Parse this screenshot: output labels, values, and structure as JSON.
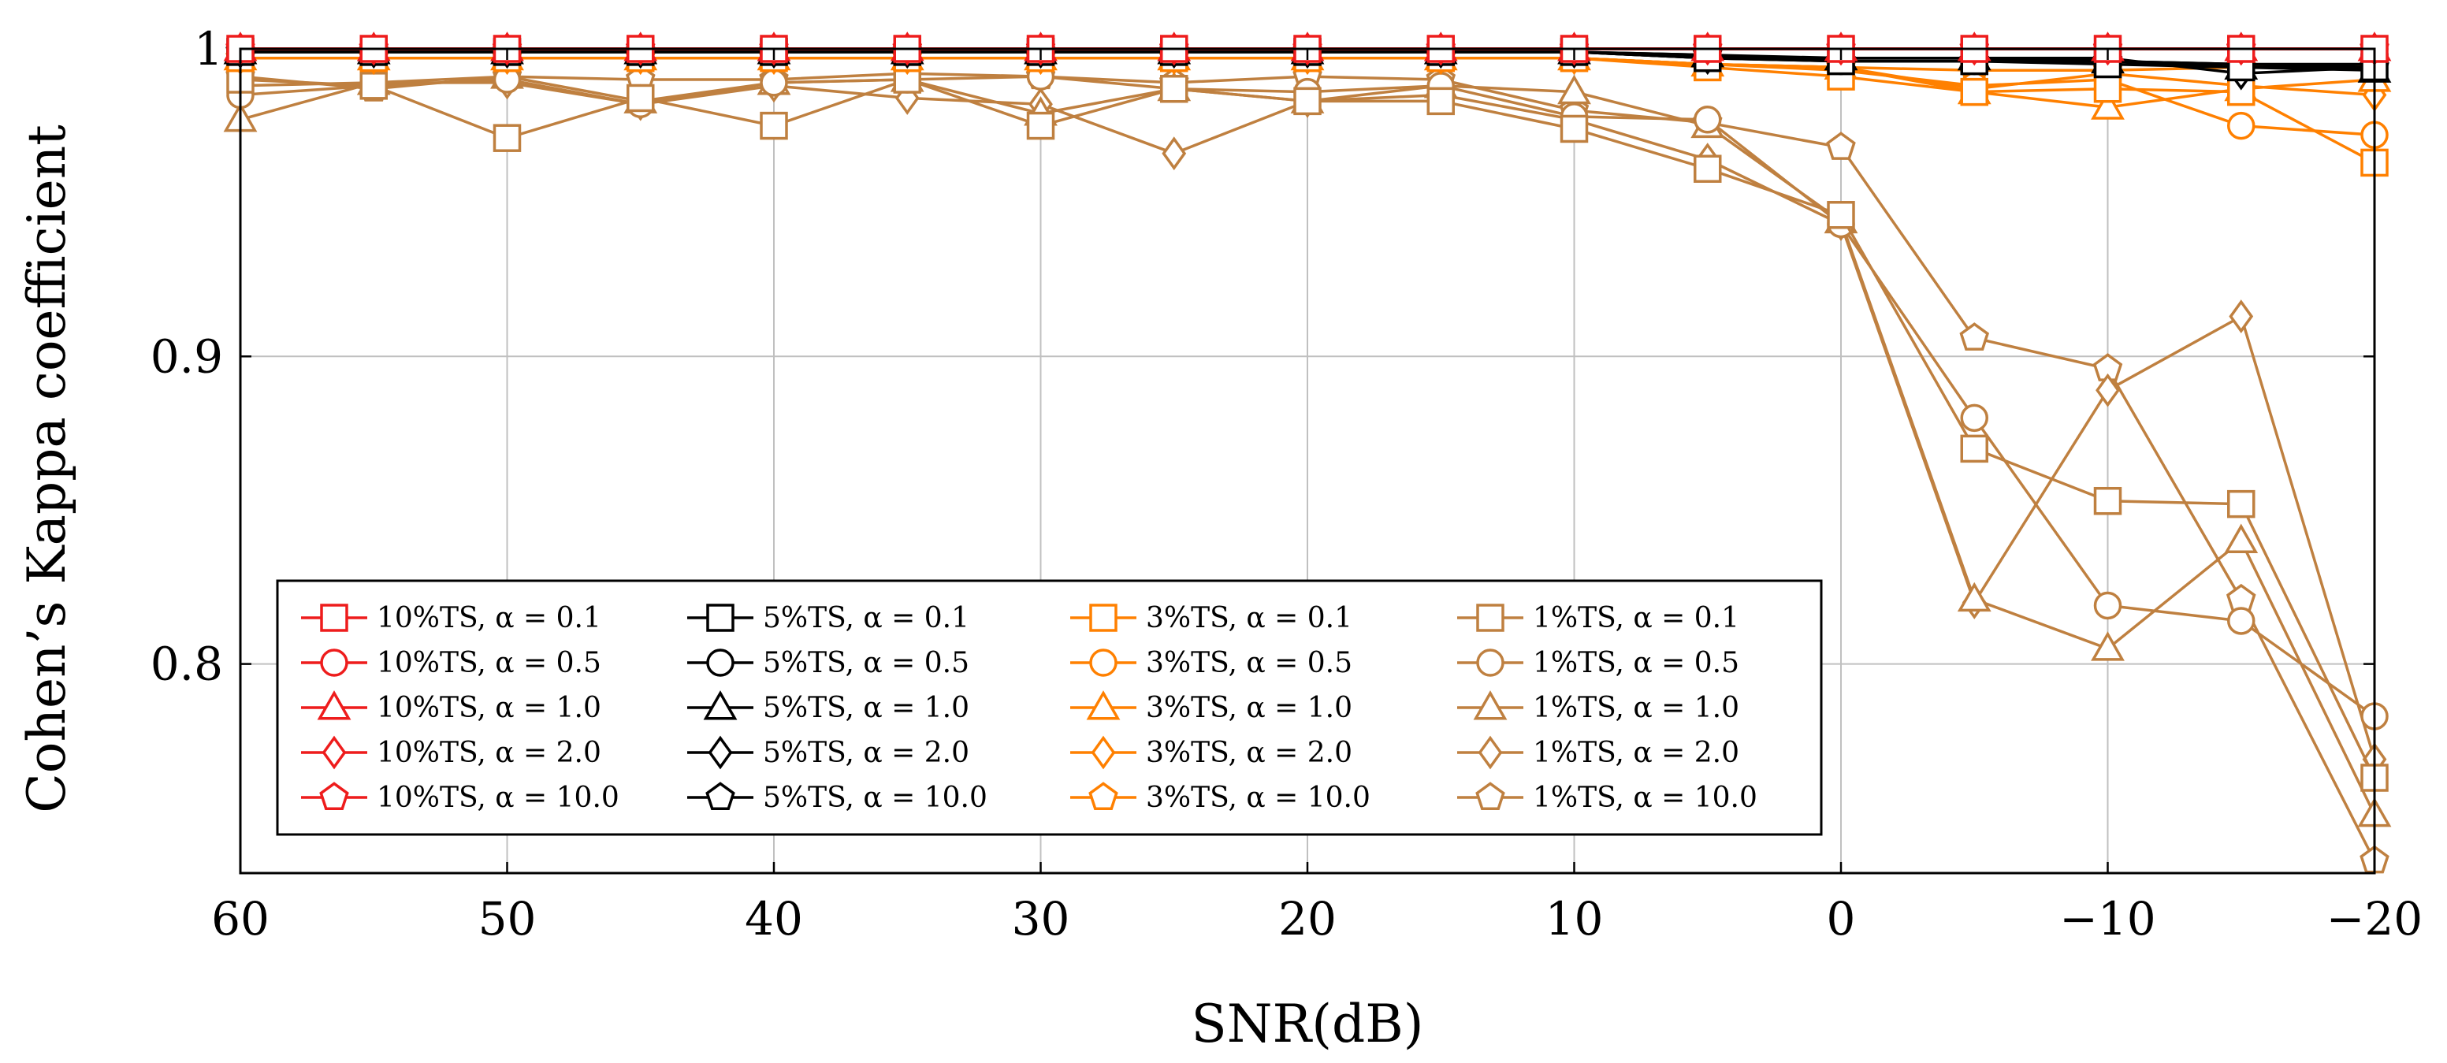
{
  "chart_data": {
    "type": "line",
    "title": "",
    "xlabel": "SNR(dB)",
    "ylabel": "Cohen’s Kappa coefficient",
    "xlim": [
      60,
      -20
    ],
    "ylim": [
      0.732,
      1.0
    ],
    "grid": true,
    "legend_position": "lower-left",
    "legend_columns": 4,
    "x": [
      60,
      55,
      50,
      45,
      40,
      35,
      30,
      25,
      20,
      15,
      10,
      5,
      0,
      -5,
      -10,
      -15,
      -20
    ],
    "x_ticks": [
      60,
      50,
      40,
      30,
      20,
      10,
      0,
      -10,
      -20
    ],
    "x_tick_labels": [
      "60",
      "50",
      "40",
      "30",
      "20",
      "10",
      "0",
      "−10",
      "−20"
    ],
    "y_ticks": [
      0.8,
      0.9,
      1.0
    ],
    "y_tick_labels": [
      "0.8",
      "0.9",
      "1"
    ],
    "colors": {
      "red": "#ee1c1c",
      "black": "#000000",
      "orange": "#ff8000",
      "brown": "#bf8040"
    },
    "series": [
      {
        "name": "10%TS, α = 0.1",
        "ts": "10%TS",
        "alpha": "0.1",
        "color": "#ee1c1c",
        "marker": "square",
        "values": [
          1.0,
          1.0,
          1.0,
          1.0,
          1.0,
          1.0,
          1.0,
          1.0,
          1.0,
          1.0,
          1.0,
          1.0,
          1.0,
          1.0,
          1.0,
          1.0,
          1.0
        ]
      },
      {
        "name": "10%TS, α = 0.5",
        "ts": "10%TS",
        "alpha": "0.5",
        "color": "#ee1c1c",
        "marker": "circle",
        "values": [
          1.0,
          1.0,
          1.0,
          1.0,
          1.0,
          1.0,
          1.0,
          1.0,
          1.0,
          1.0,
          1.0,
          1.0,
          1.0,
          1.0,
          1.0,
          1.0,
          1.0
        ]
      },
      {
        "name": "10%TS, α = 1.0",
        "ts": "10%TS",
        "alpha": "1.0",
        "color": "#ee1c1c",
        "marker": "triangle",
        "values": [
          1.0,
          1.0,
          1.0,
          1.0,
          1.0,
          1.0,
          1.0,
          1.0,
          1.0,
          1.0,
          1.0,
          1.0,
          1.0,
          1.0,
          1.0,
          1.0,
          1.0
        ]
      },
      {
        "name": "10%TS, α = 2.0",
        "ts": "10%TS",
        "alpha": "2.0",
        "color": "#ee1c1c",
        "marker": "diamond",
        "values": [
          1.0,
          1.0,
          1.0,
          1.0,
          1.0,
          1.0,
          1.0,
          1.0,
          1.0,
          1.0,
          1.0,
          1.0,
          1.0,
          1.0,
          1.0,
          1.0,
          1.0
        ]
      },
      {
        "name": "10%TS, α = 10.0",
        "ts": "10%TS",
        "alpha": "10.0",
        "color": "#ee1c1c",
        "marker": "pentagon",
        "values": [
          1.0,
          1.0,
          1.0,
          1.0,
          1.0,
          1.0,
          1.0,
          1.0,
          1.0,
          1.0,
          1.0,
          1.0,
          1.0,
          1.0,
          1.0,
          1.0,
          1.0
        ]
      },
      {
        "name": "5%TS, α = 0.1",
        "ts": "5%TS",
        "alpha": "0.1",
        "color": "#000000",
        "marker": "square",
        "values": [
          0.999,
          0.999,
          0.999,
          0.999,
          0.999,
          0.999,
          0.999,
          0.999,
          0.999,
          0.999,
          0.999,
          0.997,
          0.996,
          0.996,
          0.995,
          0.994,
          0.994
        ]
      },
      {
        "name": "5%TS, α = 0.5",
        "ts": "5%TS",
        "alpha": "0.5",
        "color": "#000000",
        "marker": "circle",
        "values": [
          0.999,
          0.999,
          0.999,
          0.999,
          0.999,
          0.999,
          0.999,
          0.999,
          0.999,
          0.999,
          0.999,
          0.997,
          0.996,
          0.996,
          0.996,
          0.995,
          0.995
        ]
      },
      {
        "name": "5%TS, α = 1.0",
        "ts": "5%TS",
        "alpha": "1.0",
        "color": "#000000",
        "marker": "triangle",
        "values": [
          0.999,
          0.999,
          0.999,
          0.999,
          0.999,
          0.999,
          0.999,
          0.999,
          0.999,
          0.999,
          0.999,
          0.998,
          0.997,
          0.997,
          0.996,
          0.994,
          0.993
        ]
      },
      {
        "name": "5%TS, α = 2.0",
        "ts": "5%TS",
        "alpha": "2.0",
        "color": "#000000",
        "marker": "diamond",
        "values": [
          0.999,
          0.999,
          0.999,
          0.999,
          0.999,
          0.999,
          0.999,
          0.999,
          0.999,
          0.999,
          0.999,
          0.997,
          0.997,
          0.997,
          0.997,
          0.992,
          0.994
        ]
      },
      {
        "name": "5%TS, α = 10.0",
        "ts": "5%TS",
        "alpha": "10.0",
        "color": "#000000",
        "marker": "pentagon",
        "values": [
          0.999,
          0.999,
          0.999,
          0.999,
          0.999,
          0.999,
          0.999,
          0.999,
          0.999,
          0.999,
          0.999,
          0.998,
          0.996,
          0.996,
          0.996,
          0.995,
          0.994
        ]
      },
      {
        "name": "3%TS, α = 0.1",
        "ts": "3%TS",
        "alpha": "0.1",
        "color": "#ff8000",
        "marker": "square",
        "values": [
          0.997,
          0.997,
          0.997,
          0.997,
          0.997,
          0.997,
          0.997,
          0.997,
          0.997,
          0.997,
          0.997,
          0.994,
          0.991,
          0.986,
          0.987,
          0.986,
          0.963
        ]
      },
      {
        "name": "3%TS, α = 0.5",
        "ts": "3%TS",
        "alpha": "0.5",
        "color": "#ff8000",
        "marker": "circle",
        "values": [
          0.997,
          0.997,
          0.997,
          0.997,
          0.997,
          0.997,
          0.997,
          0.997,
          0.997,
          0.997,
          0.997,
          0.995,
          0.993,
          0.988,
          0.99,
          0.975,
          0.972
        ]
      },
      {
        "name": "3%TS, α = 1.0",
        "ts": "3%TS",
        "alpha": "1.0",
        "color": "#ff8000",
        "marker": "triangle",
        "values": [
          0.997,
          0.997,
          0.997,
          0.997,
          0.997,
          0.997,
          0.997,
          0.997,
          0.997,
          0.997,
          0.997,
          0.995,
          0.994,
          0.986,
          0.981,
          0.987,
          0.99
        ]
      },
      {
        "name": "3%TS, α = 2.0",
        "ts": "3%TS",
        "alpha": "2.0",
        "color": "#ff8000",
        "marker": "diamond",
        "values": [
          0.997,
          0.997,
          0.997,
          0.997,
          0.997,
          0.997,
          0.997,
          0.997,
          0.997,
          0.997,
          0.997,
          0.995,
          0.994,
          0.987,
          0.992,
          0.988,
          0.985
        ]
      },
      {
        "name": "3%TS, α = 10.0",
        "ts": "3%TS",
        "alpha": "10.0",
        "color": "#ff8000",
        "marker": "pentagon",
        "values": [
          0.997,
          0.997,
          0.997,
          0.997,
          0.997,
          0.997,
          0.997,
          0.997,
          0.997,
          0.997,
          0.997,
          0.995,
          0.994,
          0.993,
          0.993,
          0.994,
          0.995
        ]
      },
      {
        "name": "1%TS, α = 0.1",
        "ts": "1%TS",
        "alpha": "0.1",
        "color": "#bf8040",
        "marker": "square",
        "values": [
          0.99,
          0.988,
          0.971,
          0.984,
          0.975,
          0.99,
          0.975,
          0.987,
          0.983,
          0.983,
          0.974,
          0.961,
          0.946,
          0.87,
          0.853,
          0.852,
          0.763
        ]
      },
      {
        "name": "1%TS, α = 0.5",
        "ts": "1%TS",
        "alpha": "0.5",
        "color": "#bf8040",
        "marker": "circle",
        "values": [
          0.985,
          0.988,
          0.99,
          0.982,
          0.989,
          0.99,
          0.991,
          0.987,
          0.986,
          0.988,
          0.978,
          0.977,
          0.943,
          0.88,
          0.819,
          0.814,
          0.783
        ]
      },
      {
        "name": "1%TS, α = 1.0",
        "ts": "1%TS",
        "alpha": "1.0",
        "color": "#bf8040",
        "marker": "triangle",
        "values": [
          0.977,
          0.989,
          0.991,
          0.983,
          0.989,
          0.99,
          0.979,
          0.987,
          0.983,
          0.988,
          0.986,
          0.975,
          0.944,
          0.821,
          0.805,
          0.84,
          0.751
        ]
      },
      {
        "name": "1%TS, α = 2.0",
        "ts": "1%TS",
        "alpha": "2.0",
        "color": "#bf8040",
        "marker": "diamond",
        "values": [
          0.988,
          0.989,
          0.989,
          0.982,
          0.988,
          0.984,
          0.982,
          0.966,
          0.983,
          0.985,
          0.977,
          0.964,
          0.943,
          0.82,
          0.889,
          0.913,
          0.769
        ]
      },
      {
        "name": "1%TS, α = 10.0",
        "ts": "1%TS",
        "alpha": "10.0",
        "color": "#bf8040",
        "marker": "pentagon",
        "values": [
          0.991,
          0.987,
          0.991,
          0.99,
          0.99,
          0.992,
          0.991,
          0.989,
          0.991,
          0.99,
          0.98,
          0.976,
          0.968,
          0.906,
          0.896,
          0.821,
          0.736
        ]
      }
    ]
  }
}
